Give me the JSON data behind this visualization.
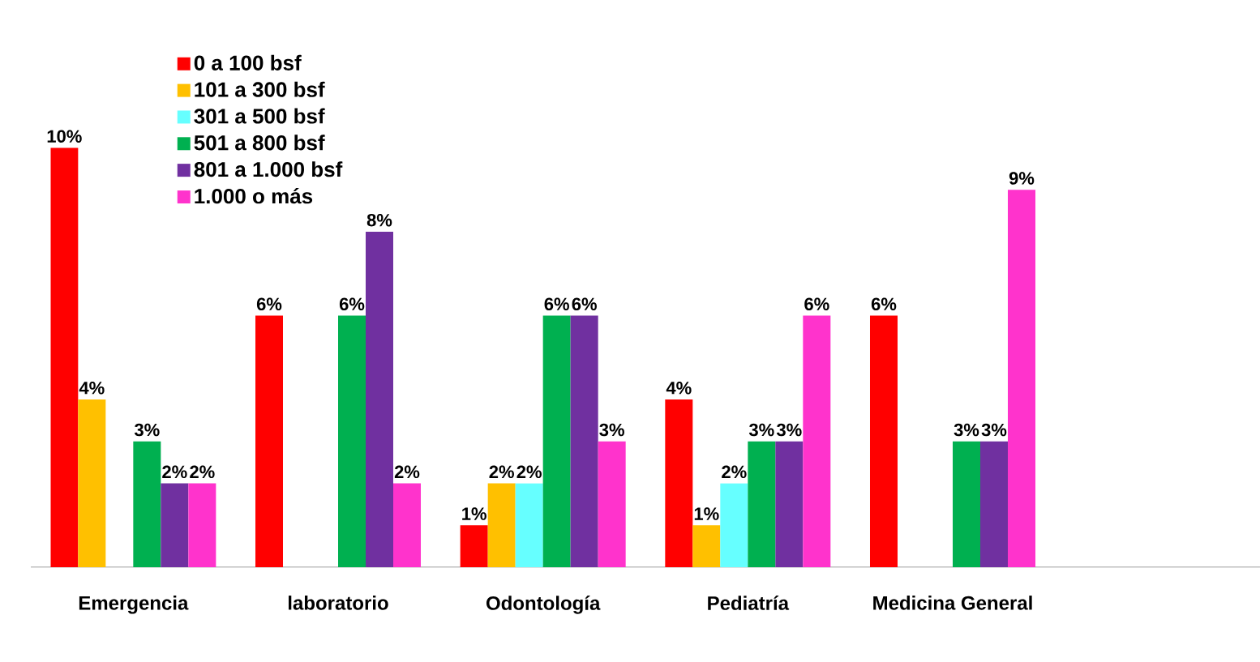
{
  "chart_data": {
    "type": "bar",
    "categories": [
      "Emergencia",
      "laboratorio",
      "Odontología",
      "Pediatría",
      "Medicina General",
      null
    ],
    "series": [
      {
        "name": "0 a 100 bsf",
        "color": "#ff0000",
        "values": [
          10,
          6,
          1,
          4,
          6,
          null
        ],
        "value_labels": [
          "10%",
          "6%",
          "1%",
          "4%",
          "6%",
          null
        ]
      },
      {
        "name": "101 a 300 bsf",
        "color": "#ffc000",
        "values": [
          4,
          null,
          2,
          1,
          null,
          null
        ],
        "value_labels": [
          "4%",
          null,
          "2%",
          "1%",
          null,
          null
        ]
      },
      {
        "name": "301 a 500 bsf",
        "color": "#66ffff",
        "values": [
          null,
          null,
          2,
          2,
          null,
          null
        ],
        "value_labels": [
          null,
          null,
          "2%",
          "2%",
          null,
          null
        ]
      },
      {
        "name": "501 a 800 bsf",
        "color": "#00b050",
        "values": [
          3,
          6,
          6,
          3,
          3,
          null
        ],
        "value_labels": [
          "3%",
          "6%",
          "6%",
          "3%",
          "3%",
          null
        ]
      },
      {
        "name": "801 a 1.000 bsf",
        "color": "#7030a0",
        "values": [
          2,
          8,
          6,
          3,
          3,
          null
        ],
        "value_labels": [
          "2%",
          "8%",
          "6%",
          "3%",
          "3%",
          null
        ]
      },
      {
        "name": "1.000 o más",
        "color": "#ff33cc",
        "values": [
          2,
          2,
          3,
          6,
          9,
          null
        ],
        "value_labels": [
          "2%",
          "2%",
          "3%",
          "6%",
          "9%",
          null
        ]
      }
    ],
    "legend": "top left",
    "tick_labels": "x"
  }
}
